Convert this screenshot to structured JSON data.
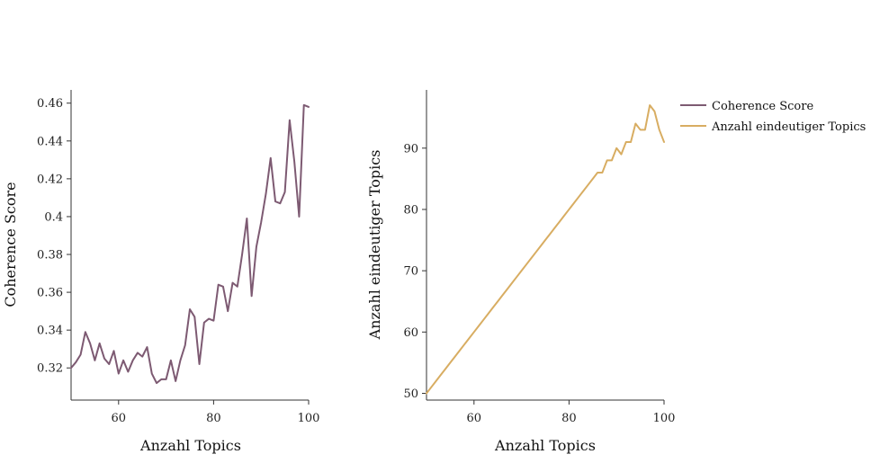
{
  "chart_data": [
    {
      "type": "line",
      "xlabel": "Anzahl Topics",
      "ylabel": "Coherence Score",
      "xlim": [
        50,
        100
      ],
      "ylim": [
        0.303,
        0.467
      ],
      "x_ticks": [
        60,
        80,
        100
      ],
      "y_ticks": [
        0.32,
        0.34,
        0.36,
        0.38,
        0.4,
        0.42,
        0.44,
        0.46
      ],
      "y_tick_labels": [
        "0.32",
        "0.34",
        "0.36",
        "0.38",
        "0.4",
        "0.42",
        "0.44",
        "0.46"
      ],
      "grid": false,
      "series": [
        {
          "name": "Coherence Score",
          "color": "#7d5a72",
          "x": [
            50,
            51,
            52,
            53,
            54,
            55,
            56,
            57,
            58,
            59,
            60,
            61,
            62,
            63,
            64,
            65,
            66,
            67,
            68,
            69,
            70,
            71,
            72,
            73,
            74,
            75,
            76,
            77,
            78,
            79,
            80,
            81,
            82,
            83,
            84,
            85,
            86,
            87,
            88,
            89,
            90,
            91,
            92,
            93,
            94,
            95,
            96,
            97,
            98,
            99,
            100
          ],
          "y": [
            0.32,
            0.323,
            0.327,
            0.339,
            0.333,
            0.324,
            0.333,
            0.325,
            0.322,
            0.329,
            0.317,
            0.324,
            0.318,
            0.324,
            0.328,
            0.326,
            0.331,
            0.317,
            0.312,
            0.314,
            0.314,
            0.324,
            0.313,
            0.324,
            0.332,
            0.351,
            0.347,
            0.322,
            0.344,
            0.346,
            0.345,
            0.364,
            0.363,
            0.35,
            0.365,
            0.363,
            0.38,
            0.399,
            0.358,
            0.384,
            0.397,
            0.412,
            0.431,
            0.408,
            0.407,
            0.413,
            0.451,
            0.429,
            0.4,
            0.459,
            0.458
          ]
        }
      ]
    },
    {
      "type": "line",
      "xlabel": "Anzahl Topics",
      "ylabel": "Anzahl eindeutiger Topics",
      "xlim": [
        50,
        100
      ],
      "ylim": [
        48.9,
        99.5
      ],
      "x_ticks": [
        60,
        80,
        100
      ],
      "y_ticks": [
        50,
        60,
        70,
        80,
        90
      ],
      "y_tick_labels": [
        "50",
        "60",
        "70",
        "80",
        "90"
      ],
      "grid": false,
      "series": [
        {
          "name": "Anzahl eindeutiger Topics",
          "color": "#d8ad62",
          "x": [
            50,
            51,
            52,
            53,
            54,
            55,
            56,
            57,
            58,
            59,
            60,
            61,
            62,
            63,
            64,
            65,
            66,
            67,
            68,
            69,
            70,
            71,
            72,
            73,
            74,
            75,
            76,
            77,
            78,
            79,
            80,
            81,
            82,
            83,
            84,
            85,
            86,
            87,
            88,
            89,
            90,
            91,
            92,
            93,
            94,
            95,
            96,
            97,
            98,
            99,
            100
          ],
          "y": [
            50,
            51,
            52,
            53,
            54,
            55,
            56,
            57,
            58,
            59,
            60,
            61,
            62,
            63,
            64,
            65,
            66,
            67,
            68,
            69,
            70,
            71,
            72,
            73,
            74,
            75,
            76,
            77,
            78,
            79,
            80,
            81,
            82,
            83,
            84,
            85,
            86,
            86,
            88,
            88,
            90,
            89,
            91,
            91,
            94,
            93,
            93,
            97,
            96,
            93,
            91
          ]
        }
      ]
    }
  ],
  "legend": {
    "position": "top-right",
    "entries": [
      {
        "label": "Coherence Score",
        "color": "#7d5a72"
      },
      {
        "label": "Anzahl eindeutiger Topics",
        "color": "#d8ad62"
      }
    ]
  }
}
